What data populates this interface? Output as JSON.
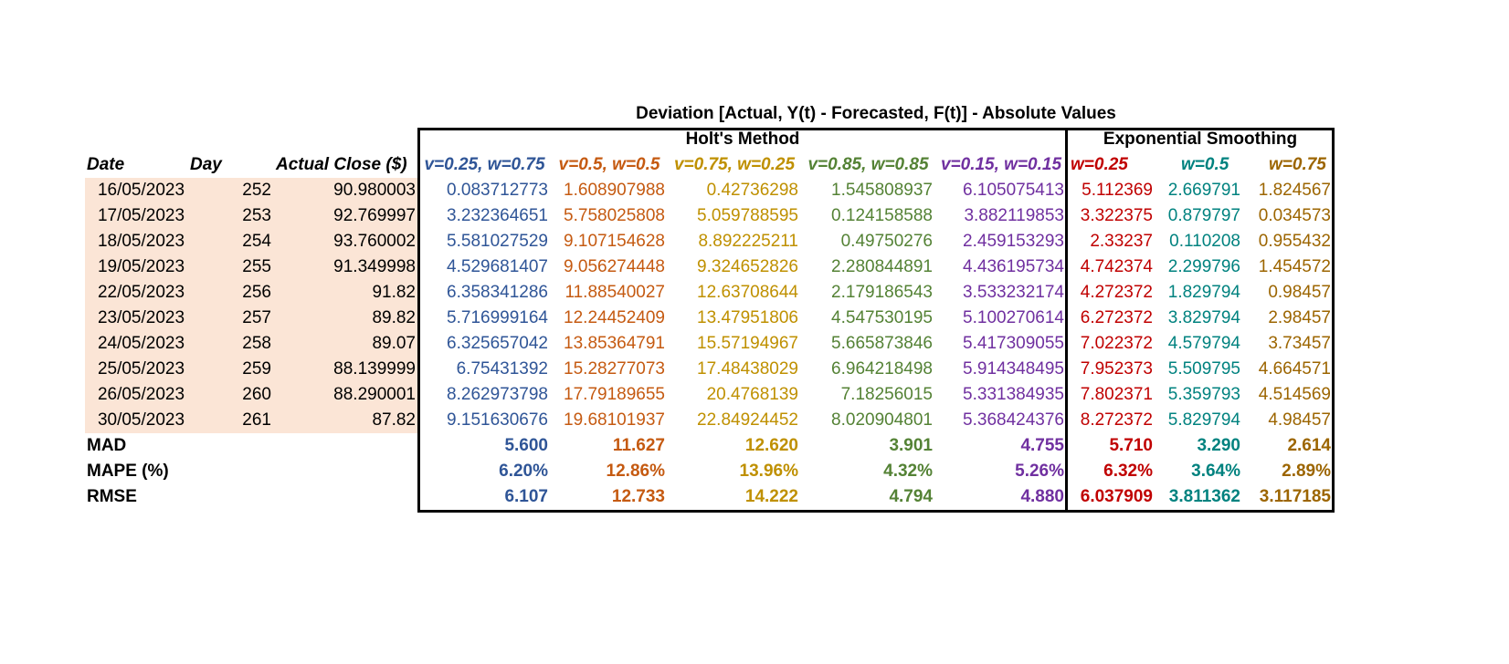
{
  "title": "Deviation [Actual, Y(t) - Forecasted, F(t)] - Absolute Values",
  "groups": {
    "holt": "Holt's Method",
    "exp": "Exponential Smoothing"
  },
  "left_headers": [
    "Date",
    "Day",
    "Actual Close ($)"
  ],
  "param_headers": [
    "v=0.25, w=0.75",
    "v=0.5, w=0.5",
    "v=0.75, w=0.25",
    "v=0.85, w=0.85",
    "v=0.15, w=0.15",
    "w=0.25",
    "w=0.5",
    "w=0.75"
  ],
  "colors": [
    "#2f5597",
    "#c55a11",
    "#bf9000",
    "#548235",
    "#7030a0",
    "#c00000",
    "#00827f",
    "#9c6500"
  ],
  "rows": [
    [
      "16/05/2023",
      "252",
      "90.980003",
      "0.083712773",
      "1.608907988",
      "0.42736298",
      "1.545808937",
      "6.105075413",
      "5.112369",
      "2.669791",
      "1.824567"
    ],
    [
      "17/05/2023",
      "253",
      "92.769997",
      "3.232364651",
      "5.758025808",
      "5.059788595",
      "0.124158588",
      "3.882119853",
      "3.322375",
      "0.879797",
      "0.034573"
    ],
    [
      "18/05/2023",
      "254",
      "93.760002",
      "5.581027529",
      "9.107154628",
      "8.892225211",
      "0.49750276",
      "2.459153293",
      "2.33237",
      "0.110208",
      "0.955432"
    ],
    [
      "19/05/2023",
      "255",
      "91.349998",
      "4.529681407",
      "9.056274448",
      "9.324652826",
      "2.280844891",
      "4.436195734",
      "4.742374",
      "2.299796",
      "1.454572"
    ],
    [
      "22/05/2023",
      "256",
      "91.82",
      "6.358341286",
      "11.88540027",
      "12.63708644",
      "2.179186543",
      "3.533232174",
      "4.272372",
      "1.829794",
      "0.98457"
    ],
    [
      "23/05/2023",
      "257",
      "89.82",
      "5.716999164",
      "12.24452409",
      "13.47951806",
      "4.547530195",
      "5.100270614",
      "6.272372",
      "3.829794",
      "2.98457"
    ],
    [
      "24/05/2023",
      "258",
      "89.07",
      "6.325657042",
      "13.85364791",
      "15.57194967",
      "5.665873846",
      "5.417309055",
      "7.022372",
      "4.579794",
      "3.73457"
    ],
    [
      "25/05/2023",
      "259",
      "88.139999",
      "6.75431392",
      "15.28277073",
      "17.48438029",
      "6.964218498",
      "5.914348495",
      "7.952373",
      "5.509795",
      "4.664571"
    ],
    [
      "26/05/2023",
      "260",
      "88.290001",
      "8.262973798",
      "17.79189655",
      "20.4768139",
      "7.18256015",
      "5.331384935",
      "7.802371",
      "5.359793",
      "4.514569"
    ],
    [
      "30/05/2023",
      "261",
      "87.82",
      "9.151630676",
      "19.68101937",
      "22.84924452",
      "8.020904801",
      "5.368424376",
      "8.272372",
      "5.829794",
      "4.98457"
    ]
  ],
  "summary": [
    {
      "label": "MAD",
      "values": [
        "5.600",
        "11.627",
        "12.620",
        "3.901",
        "4.755",
        "5.710",
        "3.290",
        "2.614"
      ]
    },
    {
      "label": "MAPE (%)",
      "values": [
        "6.20%",
        "12.86%",
        "13.96%",
        "4.32%",
        "5.26%",
        "6.32%",
        "3.64%",
        "2.89%"
      ]
    },
    {
      "label": "RMSE",
      "values": [
        "6.107",
        "12.733",
        "14.222",
        "4.794",
        "4.880",
        "6.037909",
        "3.811362",
        "3.117185"
      ]
    }
  ]
}
